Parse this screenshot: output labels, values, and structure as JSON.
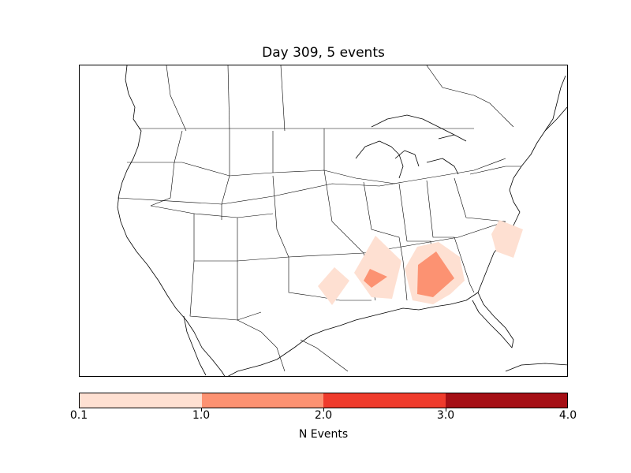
{
  "title": "Day 309, 5 events",
  "colorbar": {
    "label": "N Events",
    "ticks": [
      "0.1",
      "1.0",
      "2.0",
      "3.0",
      "4.0"
    ],
    "colors": [
      "#fee0d2",
      "#fc9272",
      "#ef3b2c",
      "#a50f15"
    ]
  },
  "map": {
    "region": "North America (continental US)",
    "projection": "Lambert conformal",
    "event_areas": [
      {
        "area": "north Texas / southern Oklahoma",
        "level": "0.1-1.0",
        "color": "#fee0d2"
      },
      {
        "area": "Arkansas",
        "level": "0.1-1.0",
        "color": "#fee0d2"
      },
      {
        "area": "Louisiana / Arkansas border",
        "level": "1.0-2.0",
        "color": "#fc9272"
      },
      {
        "area": "Mississippi / Alabama / Georgia",
        "level": "0.1-1.0",
        "color": "#fee0d2"
      },
      {
        "area": "Alabama",
        "level": "1.0-2.0",
        "color": "#fc9272"
      },
      {
        "area": "eastern North Carolina",
        "level": "0.1-1.0",
        "color": "#fee0d2"
      }
    ]
  }
}
